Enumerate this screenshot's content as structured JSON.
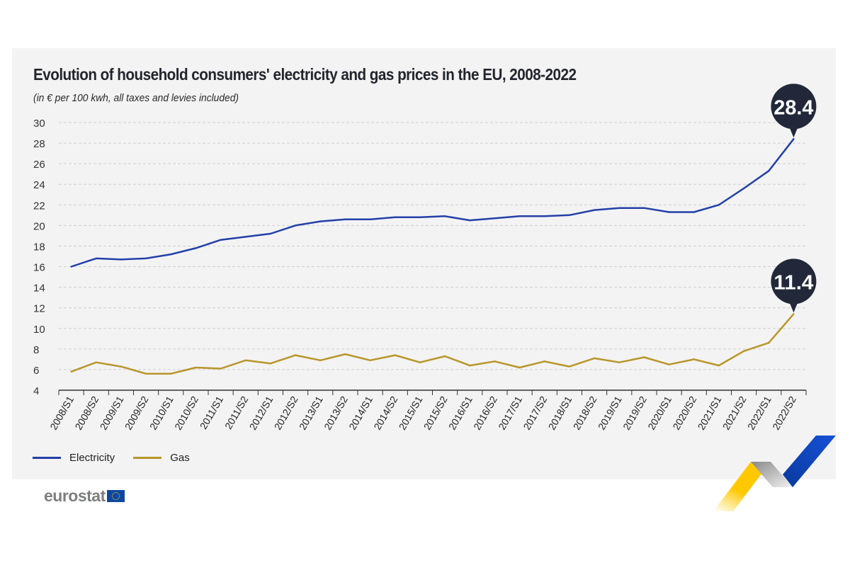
{
  "title": "Evolution of household consumers' electricity and gas prices in the EU, 2008-2022",
  "subtitle": "(in € per 100 kwh, all taxes and levies included)",
  "logo": "eurostat",
  "colors": {
    "electricity": "#2340a8",
    "gas": "#b8962a",
    "callout": "#22283a"
  },
  "chart_data": {
    "type": "line",
    "title": "Evolution of household consumers' electricity and gas prices in the EU, 2008-2022",
    "ylabel": "€ per 100 kWh",
    "ylim": [
      4,
      30
    ],
    "yticks": [
      4,
      6,
      8,
      10,
      12,
      14,
      16,
      18,
      20,
      22,
      24,
      26,
      28,
      30
    ],
    "grid": true,
    "legend": "bottom-left",
    "categories": [
      "2008/S1",
      "2008/S2",
      "2009/S1",
      "2009/S2",
      "2010/S1",
      "2010/S2",
      "2011/S1",
      "2011/S2",
      "2012/S1",
      "2012/S2",
      "2013/S1",
      "2013/S2",
      "2014/S1",
      "2014/S2",
      "2015/S1",
      "2015/S2",
      "2016/S1",
      "2016/S2",
      "2017/S1",
      "2017/S2",
      "2018/S1",
      "2018/S2",
      "2019/S1",
      "2019/S2",
      "2020/S1",
      "2020/S2",
      "2021/S1",
      "2021/S2",
      "2022/S1",
      "2022/S2"
    ],
    "series": [
      {
        "name": "Electricity",
        "values": [
          16.0,
          16.8,
          16.7,
          16.8,
          17.2,
          17.8,
          18.6,
          18.9,
          19.2,
          20.0,
          20.4,
          20.6,
          20.6,
          20.8,
          20.8,
          20.9,
          20.5,
          20.7,
          20.9,
          20.9,
          21.0,
          21.5,
          21.7,
          21.7,
          21.3,
          21.3,
          22.0,
          23.6,
          25.3,
          28.4
        ],
        "callout": "28.4"
      },
      {
        "name": "Gas",
        "values": [
          5.8,
          6.7,
          6.3,
          5.6,
          5.6,
          6.2,
          6.1,
          6.9,
          6.6,
          7.4,
          6.9,
          7.5,
          6.9,
          7.4,
          6.7,
          7.3,
          6.4,
          6.8,
          6.2,
          6.8,
          6.3,
          7.1,
          6.7,
          7.2,
          6.5,
          7.0,
          6.4,
          7.8,
          8.6,
          11.4
        ],
        "callout": "11.4"
      }
    ]
  }
}
